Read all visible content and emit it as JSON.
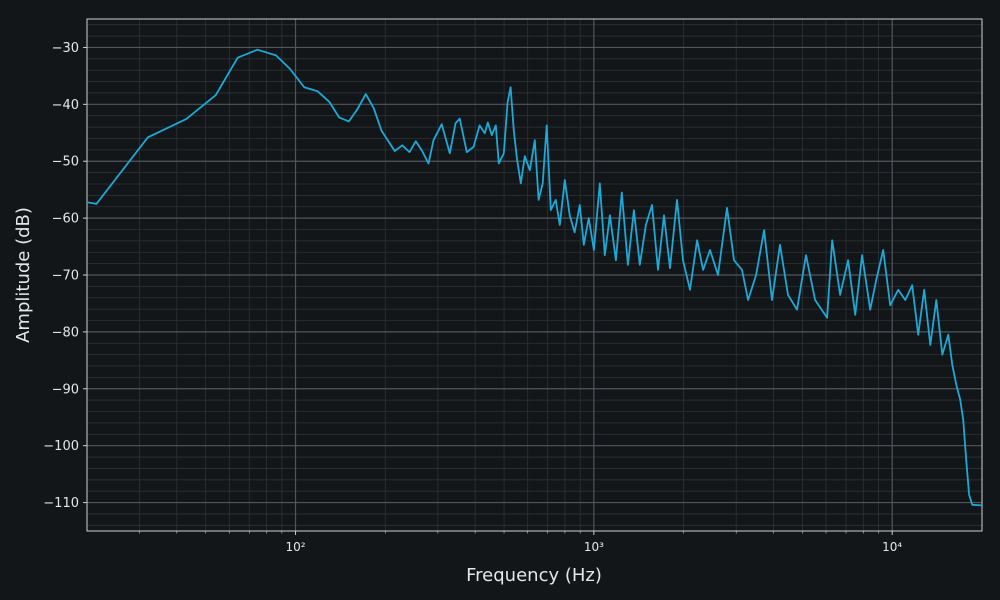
{
  "chart_data": {
    "type": "line",
    "xlabel": "Frequency (Hz)",
    "ylabel": "Amplitude (dB)",
    "xscale": "log",
    "grid": true,
    "minor_grid": true,
    "color": "#1ea8d6",
    "xlim": [
      20,
      20000
    ],
    "ylim": [
      -115,
      -25
    ],
    "xticks": [
      {
        "value": 100,
        "label": "10²"
      },
      {
        "value": 1000,
        "label": "10³"
      },
      {
        "value": 10000,
        "label": "10⁴"
      }
    ],
    "xminorticks": [
      30,
      40,
      50,
      60,
      70,
      80,
      90,
      200,
      300,
      400,
      500,
      600,
      700,
      800,
      900,
      2000,
      3000,
      4000,
      5000,
      6000,
      7000,
      8000,
      9000
    ],
    "yticks": [
      {
        "value": -110,
        "label": "−110"
      },
      {
        "value": -100,
        "label": "−100"
      },
      {
        "value": -90,
        "label": "−90"
      },
      {
        "value": -80,
        "label": "−80"
      },
      {
        "value": -70,
        "label": "−70"
      },
      {
        "value": -60,
        "label": "−60"
      },
      {
        "value": -50,
        "label": "−50"
      },
      {
        "value": -40,
        "label": "−40"
      },
      {
        "value": -30,
        "label": "−30"
      }
    ],
    "yminorticks": [
      -114,
      -112,
      -108,
      -106,
      -104,
      -102,
      -98,
      -96,
      -94,
      -92,
      -88,
      -86,
      -84,
      -82,
      -78,
      -76,
      -74,
      -72,
      -68,
      -66,
      -64,
      -62,
      -58,
      -56,
      -54,
      -52,
      -48,
      -46,
      -44,
      -42,
      -38,
      -36,
      -34,
      -32,
      -28,
      -26
    ],
    "x": [
      20,
      21.5,
      32,
      43,
      54,
      64,
      74.5,
      86,
      95.5,
      107,
      118.5,
      130,
      140,
      151,
      161,
      172,
      183,
      194,
      215,
      228,
      241,
      253,
      265,
      279,
      290,
      309,
      329,
      344,
      355,
      375,
      395,
      414,
      431,
      441,
      455,
      469,
      480,
      499,
      514,
      526,
      539,
      552,
      569,
      587,
      610,
      634,
      653,
      674,
      695,
      717,
      745,
      769,
      799,
      830,
      862,
      897,
      925,
      961,
      1000,
      1047,
      1088,
      1132,
      1185,
      1241,
      1300,
      1362,
      1426,
      1494,
      1566,
      1640,
      1718,
      1800,
      1900,
      1990,
      2100,
      2218,
      2323,
      2450,
      2606,
      2794,
      2950,
      3138,
      3289,
      3499,
      3720,
      3956,
      4206,
      4474,
      4797,
      5141,
      5517,
      6051,
      6293,
      6691,
      7117,
      7516,
      7930,
      8436,
      8838,
      9330,
      9846,
      10471,
      11063,
      11670,
      12220,
      12800,
      13420,
      14060,
      14720,
      15420,
      15900,
      16400,
      16900,
      17300,
      17700,
      18100,
      18540,
      20000
    ],
    "values": [
      -57.2,
      -57.5,
      -45.8,
      -42.6,
      -38.4,
      -31.8,
      -30.4,
      -31.4,
      -33.7,
      -37,
      -37.7,
      -39.6,
      -42.3,
      -43,
      -40.9,
      -38.2,
      -40.7,
      -44.6,
      -48.2,
      -47.2,
      -48.4,
      -46.5,
      -48.1,
      -50.4,
      -46.3,
      -43.5,
      -48.6,
      -43.3,
      -42.5,
      -48.4,
      -47.5,
      -43.7,
      -45.1,
      -43.2,
      -45.4,
      -43.7,
      -50.4,
      -48.6,
      -39.6,
      -37,
      -44.6,
      -49.5,
      -53.9,
      -49.1,
      -51.6,
      -46.3,
      -56.8,
      -53.9,
      -43.7,
      -58.6,
      -56.8,
      -61.2,
      -53.3,
      -59.5,
      -62.5,
      -57.7,
      -64.7,
      -60,
      -65.6,
      -53.9,
      -66.5,
      -59.5,
      -67.4,
      -55.5,
      -68.2,
      -58.6,
      -68.2,
      -61.2,
      -57.7,
      -69.1,
      -59.5,
      -68.8,
      -56.8,
      -67.4,
      -72.6,
      -63.9,
      -69.1,
      -65.6,
      -70,
      -58.2,
      -67.4,
      -69.1,
      -74.4,
      -70,
      -62.1,
      -74.4,
      -64.7,
      -73.5,
      -76.1,
      -66.5,
      -74.4,
      -77.5,
      -63.9,
      -73.5,
      -67.4,
      -77,
      -66.5,
      -76.1,
      -70.9,
      -65.6,
      -75.3,
      -72.6,
      -74.4,
      -71.8,
      -80.5,
      -72.6,
      -82.3,
      -74.4,
      -84,
      -80.5,
      -85.8,
      -89.3,
      -91.9,
      -95.4,
      -102.5,
      -108.6,
      -110.4,
      -110.5
    ]
  }
}
